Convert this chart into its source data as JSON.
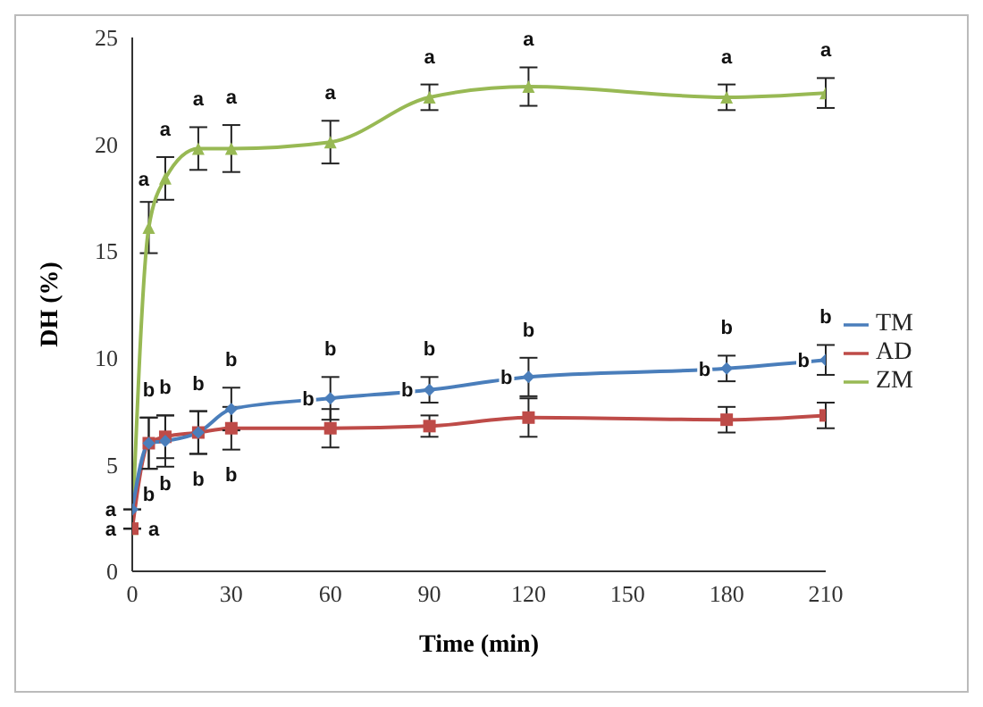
{
  "chart_data": {
    "type": "line",
    "xlabel": "Time (min)",
    "ylabel": "DH (%)",
    "x": [
      0,
      5,
      10,
      20,
      30,
      60,
      90,
      120,
      180,
      210
    ],
    "series": [
      {
        "name": "TM",
        "color": "#4a7ebb",
        "marker": "diamond",
        "values": [
          2.9,
          6.0,
          6.1,
          6.5,
          7.6,
          8.1,
          8.5,
          9.1,
          9.5,
          9.9
        ],
        "errors": [
          null,
          1.2,
          1.2,
          1.0,
          1.0,
          1.0,
          0.6,
          0.9,
          0.6,
          0.7
        ]
      },
      {
        "name": "AD",
        "color": "#be4b48",
        "marker": "square",
        "values": [
          2.0,
          6.0,
          6.3,
          6.5,
          6.7,
          6.7,
          6.8,
          7.2,
          7.1,
          7.3
        ],
        "errors": [
          null,
          1.2,
          1.0,
          1.0,
          1.0,
          0.9,
          0.5,
          0.9,
          0.6,
          0.6
        ]
      },
      {
        "name": "ZM",
        "color": "#98b954",
        "marker": "triangle",
        "values": [
          2.0,
          16.1,
          18.4,
          19.8,
          19.8,
          20.1,
          22.2,
          22.7,
          22.2,
          22.4
        ],
        "errors": [
          null,
          1.2,
          1.0,
          1.0,
          1.1,
          1.0,
          0.6,
          0.9,
          0.6,
          0.7
        ]
      }
    ],
    "xlim": [
      0,
      210
    ],
    "xticks": [
      0,
      30,
      60,
      90,
      120,
      150,
      180,
      210
    ],
    "ylim": [
      0,
      25
    ],
    "yticks": [
      0,
      5,
      10,
      15,
      20,
      25
    ],
    "grid": false,
    "legend": "right",
    "line_style": "solid",
    "annotations": [
      {
        "text": "a",
        "x": 10,
        "y": 18.4
      },
      {
        "text": "a",
        "x": 10,
        "y": 19.4
      },
      {
        "text": "a",
        "x": 20,
        "y": 20.8
      },
      {
        "text": "a",
        "x": 30,
        "y": 20.9
      },
      {
        "text": "a",
        "x": 60,
        "y": 21.1
      },
      {
        "text": "a",
        "x": 90,
        "y": 22.8
      },
      {
        "text": "a",
        "x": 120,
        "y": 23.6
      },
      {
        "text": "a",
        "x": 180,
        "y": 22.8
      },
      {
        "text": "a",
        "x": 210,
        "y": 23.1
      },
      {
        "text": "a",
        "x": 0,
        "y": 2.9
      },
      {
        "text": "a",
        "x": 0,
        "y": 2.0
      },
      {
        "text": "a",
        "x": 0,
        "y": 2.0
      },
      {
        "text": "b",
        "x": 5,
        "y": 7.2
      },
      {
        "text": "b",
        "x": 10,
        "y": 7.3
      },
      {
        "text": "b",
        "x": 20,
        "y": 7.5
      },
      {
        "text": "b",
        "x": 30,
        "y": 8.6
      },
      {
        "text": "b",
        "x": 60,
        "y": 9.1
      },
      {
        "text": "b",
        "x": 90,
        "y": 9.1
      },
      {
        "text": "b",
        "x": 120,
        "y": 10.0
      },
      {
        "text": "b",
        "x": 180,
        "y": 10.1
      },
      {
        "text": "b",
        "x": 210,
        "y": 10.6
      },
      {
        "text": "b",
        "x": 60,
        "y": 8.1
      },
      {
        "text": "b",
        "x": 90,
        "y": 8.5
      },
      {
        "text": "b",
        "x": 120,
        "y": 9.1
      },
      {
        "text": "b",
        "x": 180,
        "y": 9.5
      },
      {
        "text": "b",
        "x": 210,
        "y": 9.9
      },
      {
        "text": "b",
        "x": 5,
        "y": 4.8
      },
      {
        "text": "b",
        "x": 10,
        "y": 5.3
      },
      {
        "text": "b",
        "x": 20,
        "y": 5.5
      },
      {
        "text": "b",
        "x": 30,
        "y": 5.7
      }
    ]
  }
}
